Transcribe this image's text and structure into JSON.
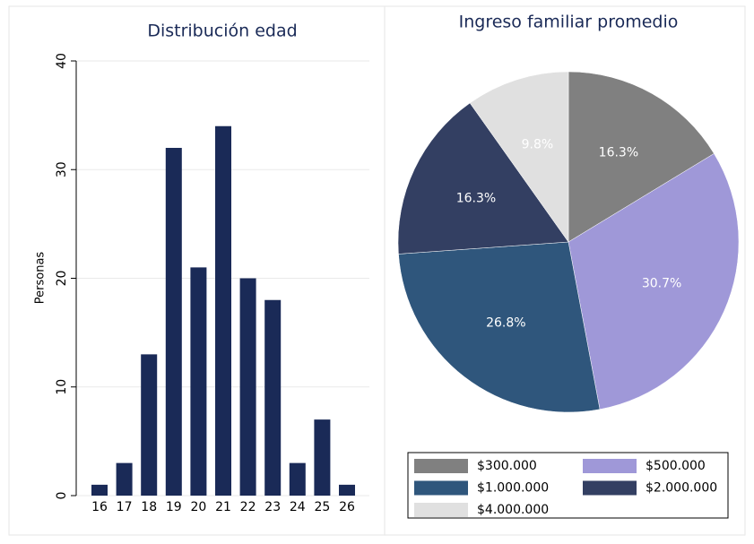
{
  "chart_data": [
    {
      "type": "bar",
      "title": "Distribución edad",
      "y_label": "Personas",
      "categories": [
        "16",
        "17",
        "18",
        "19",
        "20",
        "21",
        "22",
        "23",
        "24",
        "25",
        "26"
      ],
      "values": [
        1,
        3,
        13,
        32,
        21,
        34,
        20,
        18,
        3,
        7,
        1
      ],
      "color": "#1a2a57",
      "ylim": [
        0,
        40
      ],
      "yticks": [
        0,
        10,
        20,
        30,
        40
      ],
      "grid": true
    },
    {
      "type": "pie",
      "title": "Ingreso familiar promedio",
      "categories": [
        "$300.000",
        "$500.000",
        "$1.000.000",
        "$2.000.000",
        "$4.000.000"
      ],
      "values": [
        16.3,
        30.7,
        26.8,
        16.3,
        9.8
      ],
      "value_labels": [
        "16.3%",
        "30.7%",
        "26.8%",
        "16.3%",
        "9.8%"
      ],
      "colors": [
        "#808080",
        "#9f98d8",
        "#2f567c",
        "#333f62",
        "#e0e0e0"
      ],
      "legend": "bottom"
    }
  ]
}
